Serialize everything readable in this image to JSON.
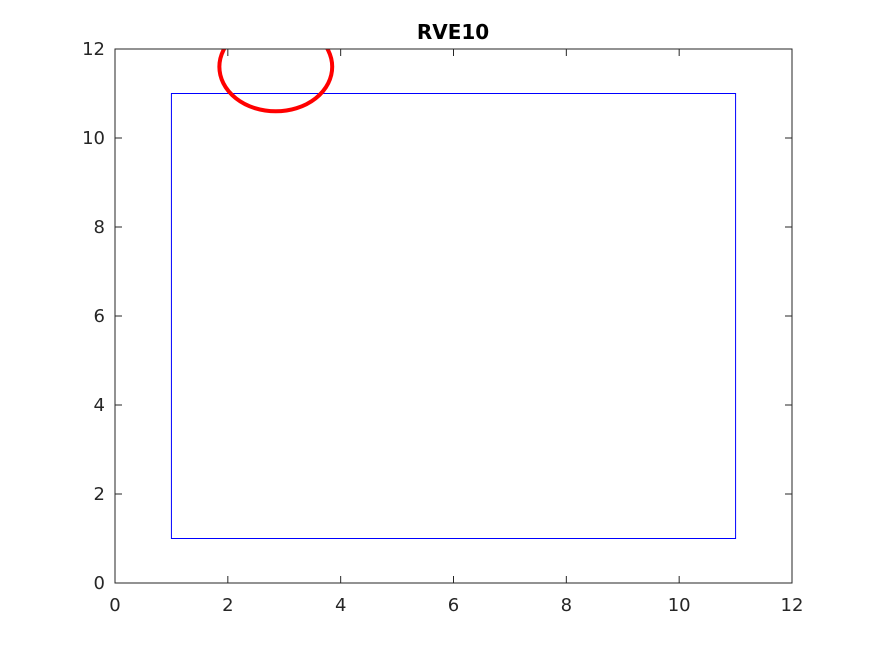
{
  "chart_data": {
    "type": "scatter",
    "title": "RVE10",
    "xlabel": "",
    "ylabel": "",
    "xlim": [
      0,
      12
    ],
    "ylim": [
      0,
      12
    ],
    "x_ticks": [
      "0",
      "2",
      "4",
      "6",
      "8",
      "10",
      "12"
    ],
    "y_ticks": [
      "0",
      "2",
      "4",
      "6",
      "8",
      "10",
      "12"
    ],
    "grid": false,
    "shapes": [
      {
        "kind": "rectangle",
        "x_min": 1,
        "x_max": 11,
        "y_min": 1,
        "y_max": 11,
        "color": "#0000ff"
      },
      {
        "kind": "circle",
        "cx": 2.85,
        "cy": 11.6,
        "r": 1.0,
        "color": "#ff0000"
      }
    ]
  }
}
